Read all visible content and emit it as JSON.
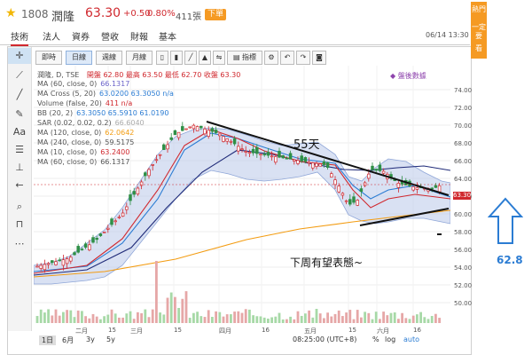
{
  "header": {
    "code": "1808",
    "name": "潤隆",
    "price": "63.30",
    "change": "+0.50",
    "change_pct": "0.80%",
    "volume": "411張",
    "order_button": "下單",
    "datetime": "06/14 13:30"
  },
  "tabs": [
    {
      "label": "技術"
    },
    {
      "label": "法人"
    },
    {
      "label": "資券"
    },
    {
      "label": "營收"
    },
    {
      "label": "財報"
    },
    {
      "label": "基本"
    }
  ],
  "toolbar": {
    "buttons": [
      {
        "label": "即時"
      },
      {
        "label": "日線"
      },
      {
        "label": "週線"
      },
      {
        "label": "月線"
      }
    ],
    "indicator_label": "指標",
    "camera_icon": "camera-icon"
  },
  "indicators": {
    "title": "潤隆, D, TSE",
    "ohlc": "開盤 62.80 最高 63.50 最低 62.70 收盤 63.30",
    "rows": [
      {
        "label": "MA (60, close, 0)",
        "value": "66.1317",
        "color": "#6b63c9"
      },
      {
        "label": "MA Cross (5, 20)",
        "value": "63.0200 63.3050 n/a",
        "color": "#2b7cd3"
      },
      {
        "label": "Volume (false, 20)",
        "value": "411 n/a",
        "color": "#d0282e"
      },
      {
        "label": "BB (20, 2)",
        "value": "63.3050 65.5910 61.0190",
        "color": "#2b7cd3"
      },
      {
        "label": "SAR (0.02, 0.02, 0.2)",
        "value": "66.6040",
        "color": "#aaaaaa"
      },
      {
        "label": "MA (120, close, 0)",
        "value": "62.0642",
        "color": "#f39c12"
      },
      {
        "label": "MA (240, close, 0)",
        "value": "59.5175",
        "color": "#555555"
      },
      {
        "label": "MA (10, close, 0)",
        "value": "63.2400",
        "color": "#d0282e"
      },
      {
        "label": "MA (60, close, 0)",
        "value": "66.1317",
        "color": "#555555"
      }
    ],
    "warning": "◆ 盤後數據"
  },
  "y_axis": [
    "74.00",
    "72.00",
    "70.00",
    "68.00",
    "66.00",
    "64.00",
    "62.00",
    "60.00",
    "58.00",
    "56.00",
    "54.00",
    "52.00",
    "50.00"
  ],
  "last_price_tag": "63.30",
  "x_axis": [
    "二月",
    "15",
    "三月",
    "15",
    "四月",
    "16",
    "五月",
    "15",
    "六月",
    "16"
  ],
  "range_buttons": [
    "1日",
    "6月",
    "3y",
    "5y"
  ],
  "time_readout": "08:25:00 (UTC+8)",
  "bottom_right": [
    "%",
    "log",
    "auto"
  ],
  "annotations": {
    "days": "55天",
    "note": "下周有望表態~",
    "target": "62.8"
  },
  "side_banner": {
    "line1": "熱門",
    "line2": "一定要",
    "line3": "看"
  },
  "colors": {
    "up": "#d0282e",
    "down": "#2f8f46",
    "band": "#b9c9ea",
    "accent": "#f59a23"
  }
}
